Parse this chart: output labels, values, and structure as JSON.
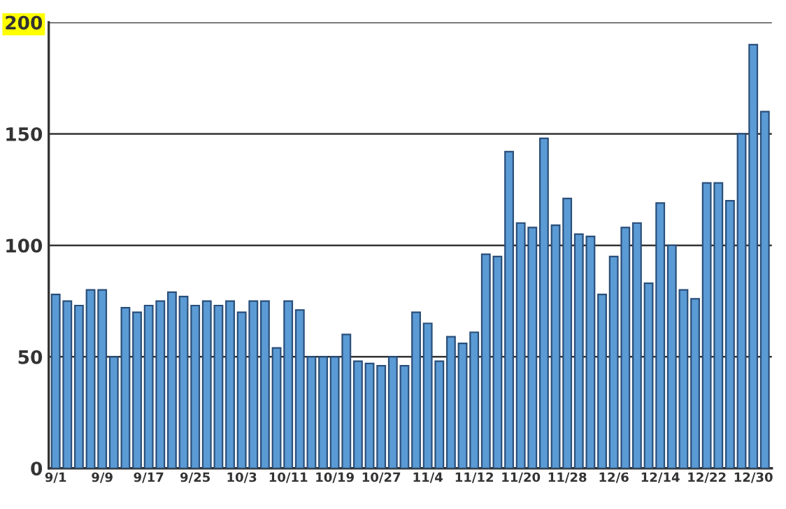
{
  "chart_data": {
    "type": "bar",
    "categories": [
      "9/1",
      null,
      null,
      null,
      "9/9",
      null,
      null,
      null,
      "9/17",
      null,
      null,
      null,
      "9/25",
      null,
      null,
      null,
      "10/3",
      null,
      null,
      null,
      "10/11",
      null,
      null,
      null,
      "10/19",
      null,
      null,
      null,
      "10/27",
      null,
      null,
      null,
      "11/4",
      null,
      null,
      null,
      "11/12",
      null,
      null,
      null,
      "11/20",
      null,
      null,
      null,
      "11/28",
      null,
      null,
      null,
      "12/6",
      null,
      null,
      null,
      "12/14",
      null,
      null,
      null,
      "12/22",
      null,
      null,
      null,
      "12/30",
      null
    ],
    "values": [
      78,
      75,
      73,
      80,
      80,
      50,
      72,
      70,
      73,
      75,
      79,
      77,
      73,
      75,
      73,
      75,
      70,
      75,
      75,
      54,
      75,
      71,
      50,
      50,
      50,
      60,
      48,
      47,
      46,
      50,
      46,
      70,
      65,
      48,
      59,
      56,
      61,
      96,
      95,
      142,
      110,
      108,
      148,
      109,
      121,
      105,
      104,
      78,
      95,
      108,
      110,
      83,
      119,
      100,
      80,
      76,
      128,
      128,
      120,
      150,
      190,
      160
    ],
    "color": "#5b9bd5",
    "ylim": [
      0,
      200
    ],
    "yticks": [
      0,
      50,
      100,
      150,
      200
    ],
    "grid": "y"
  }
}
